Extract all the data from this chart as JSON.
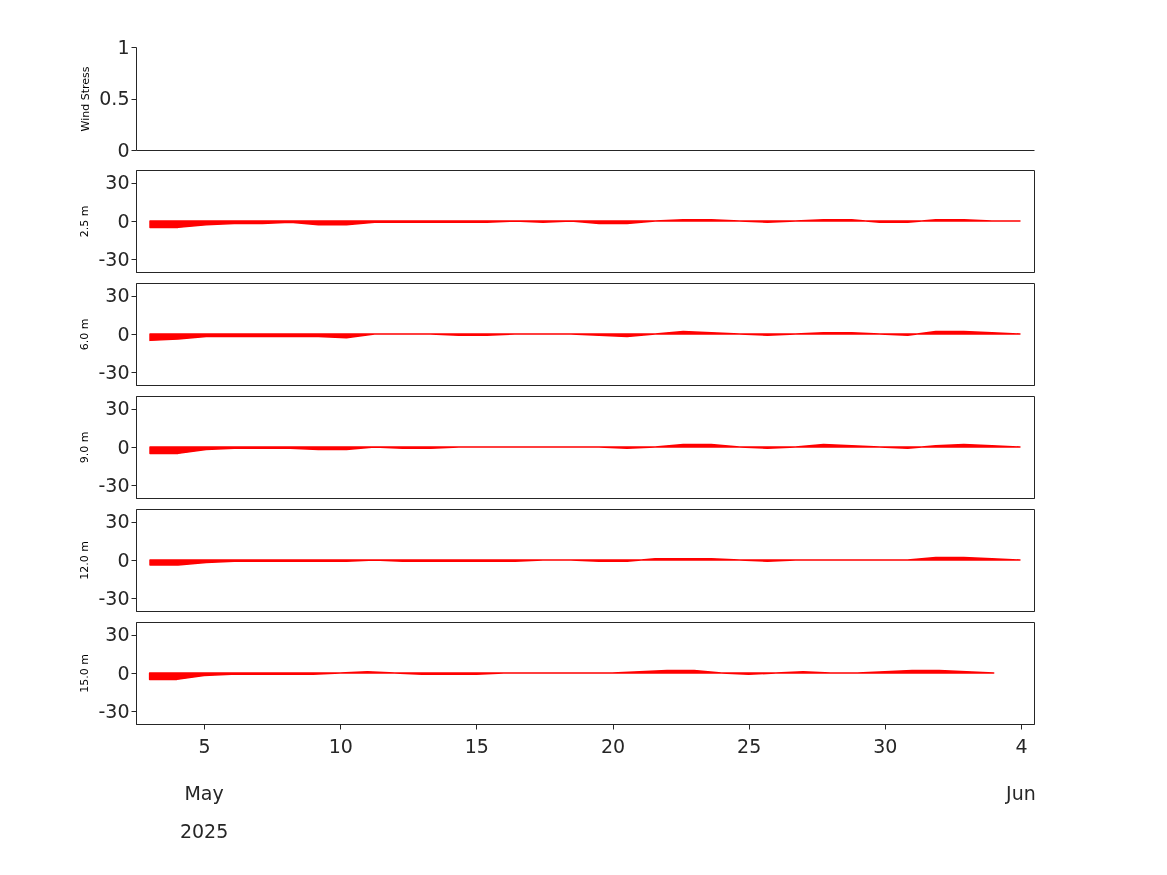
{
  "chart_data": [
    {
      "type": "line",
      "ylabel": "Wind Stress",
      "ylim": [
        0,
        1
      ],
      "yticks": [
        0,
        0.5,
        1
      ],
      "tick_labels": "y",
      "categories": [
        null,
        null,
        null,
        null,
        null,
        null,
        null,
        null,
        null,
        null,
        null,
        null,
        null,
        null,
        null,
        null,
        null,
        null,
        null,
        null,
        null,
        null,
        null,
        null,
        null,
        null,
        null,
        null,
        null,
        null,
        null,
        null
      ],
      "series": [
        {
          "values": [
            null,
            null,
            null,
            null,
            null,
            null,
            null,
            null,
            null,
            null,
            null,
            null,
            null,
            null,
            null,
            null,
            null,
            null,
            null,
            null,
            null,
            null,
            null,
            null,
            null,
            null,
            null,
            null,
            null,
            null,
            null,
            null
          ]
        }
      ]
    },
    {
      "type": "area",
      "ylabel": "2.5 m",
      "ylim": [
        -40,
        40
      ],
      "yticks": [
        -30,
        0,
        30
      ],
      "tick_labels": "y",
      "categories": [
        null,
        null,
        null,
        null,
        null,
        null,
        null,
        null,
        null,
        null,
        null,
        null,
        null,
        null,
        null,
        null,
        null,
        null,
        null,
        null,
        null,
        null,
        null,
        null,
        null,
        null,
        null,
        null,
        null,
        null,
        null,
        null
      ],
      "series": [
        {
          "color": "#ff0000",
          "values": [
            -5,
            -5,
            -3,
            -2,
            -2,
            -1,
            -3,
            -3,
            -1,
            -1,
            -1,
            -1,
            -1,
            0,
            -1,
            0,
            -2,
            -2,
            0,
            1,
            1,
            0,
            -1,
            0,
            1,
            1,
            -1,
            -1,
            1,
            1,
            0,
            0
          ]
        }
      ]
    },
    {
      "type": "area",
      "ylabel": "6.0 m",
      "ylim": [
        -40,
        40
      ],
      "yticks": [
        -30,
        0,
        30
      ],
      "tick_labels": "y",
      "categories": [
        null,
        null,
        null,
        null,
        null,
        null,
        null,
        null,
        null,
        null,
        null,
        null,
        null,
        null,
        null,
        null,
        null,
        null,
        null,
        null,
        null,
        null,
        null,
        null,
        null,
        null,
        null,
        null,
        null,
        null,
        null,
        null
      ],
      "series": [
        {
          "color": "#ff0000",
          "values": [
            -5,
            -4,
            -2,
            -2,
            -2,
            -2,
            -2,
            -3,
            0,
            0,
            0,
            -1,
            -1,
            0,
            0,
            0,
            -1,
            -2,
            0,
            2,
            1,
            0,
            -1,
            0,
            1,
            1,
            0,
            -1,
            2,
            2,
            1,
            0
          ]
        }
      ]
    },
    {
      "type": "area",
      "ylabel": "9.0 m",
      "ylim": [
        -40,
        40
      ],
      "yticks": [
        -30,
        0,
        30
      ],
      "tick_labels": "y",
      "categories": [
        null,
        null,
        null,
        null,
        null,
        null,
        null,
        null,
        null,
        null,
        null,
        null,
        null,
        null,
        null,
        null,
        null,
        null,
        null,
        null,
        null,
        null,
        null,
        null,
        null,
        null,
        null,
        null,
        null,
        null,
        null,
        null
      ],
      "series": [
        {
          "color": "#ff0000",
          "values": [
            -5,
            -5,
            -2,
            -1,
            -1,
            -1,
            -2,
            -2,
            0,
            -1,
            -1,
            0,
            0,
            0,
            0,
            0,
            0,
            -1,
            0,
            2,
            2,
            0,
            -1,
            0,
            2,
            1,
            0,
            -1,
            1,
            2,
            1,
            0
          ]
        }
      ]
    },
    {
      "type": "area",
      "ylabel": "12.0 m",
      "ylim": [
        -40,
        40
      ],
      "yticks": [
        -30,
        0,
        30
      ],
      "tick_labels": "y",
      "categories": [
        null,
        null,
        null,
        null,
        null,
        null,
        null,
        null,
        null,
        null,
        null,
        null,
        null,
        null,
        null,
        null,
        null,
        null,
        null,
        null,
        null,
        null,
        null,
        null,
        null,
        null,
        null,
        null,
        null,
        null,
        null,
        null
      ],
      "series": [
        {
          "color": "#ff0000",
          "values": [
            -4,
            -4,
            -2,
            -1,
            -1,
            -1,
            -1,
            -1,
            0,
            -1,
            -1,
            -1,
            -1,
            -1,
            0,
            0,
            -1,
            -1,
            1,
            1,
            1,
            0,
            -1,
            0,
            0,
            0,
            0,
            0,
            2,
            2,
            1,
            0
          ]
        }
      ]
    },
    {
      "type": "area",
      "ylabel": "15.0 m",
      "xlim": [
        "2025-05-02T12:00",
        "2025-06-04T11:30"
      ],
      "ylim": [
        -40,
        40
      ],
      "yticks": [
        -30,
        0,
        30
      ],
      "xticks": [
        {
          "value": "2025-05-05",
          "label": "5"
        },
        {
          "value": "2025-05-10",
          "label": "10"
        },
        {
          "value": "2025-05-15",
          "label": "15"
        },
        {
          "value": "2025-05-20",
          "label": "20"
        },
        {
          "value": "2025-05-25",
          "label": "25"
        },
        {
          "value": "2025-05-30",
          "label": "30"
        },
        {
          "value": "2025-06-04",
          "label": "4"
        }
      ],
      "annotations": [
        "May",
        "2025",
        "Jun"
      ],
      "x": [
        "2025-05-03",
        "2025-05-04",
        "2025-05-05",
        "2025-05-06",
        "2025-05-07",
        "2025-05-08",
        "2025-05-09",
        "2025-05-10",
        "2025-05-11",
        "2025-05-12",
        "2025-05-13",
        "2025-05-14",
        "2025-05-15",
        "2025-05-16",
        "2025-05-17",
        "2025-05-18",
        "2025-05-19",
        "2025-05-20",
        "2025-05-21",
        "2025-05-22",
        "2025-05-23",
        "2025-05-24",
        "2025-05-25",
        "2025-05-26",
        "2025-05-27",
        "2025-05-28",
        "2025-05-29",
        "2025-05-30",
        "2025-05-31",
        "2025-06-01",
        "2025-06-02",
        "2025-06-03"
      ],
      "series": [
        {
          "color": "#ff0000",
          "values": [
            -5,
            -5,
            -2,
            -1,
            -1,
            -1,
            -1,
            0,
            1,
            0,
            -1,
            -1,
            -1,
            0,
            0,
            0,
            0,
            0,
            1,
            2,
            2,
            0,
            -1,
            0,
            1,
            0,
            0,
            1,
            2,
            2,
            1,
            0
          ]
        }
      ]
    }
  ]
}
